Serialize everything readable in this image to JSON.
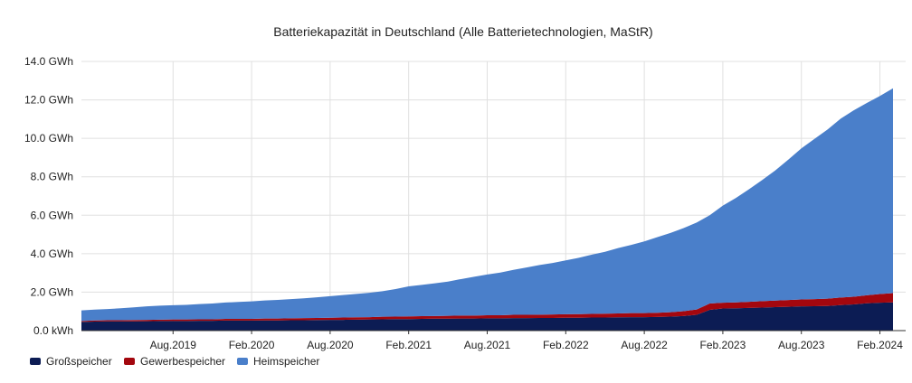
{
  "chart_data": {
    "type": "area",
    "stacked": true,
    "title": "Batteriekapazität in Deutschland (Alle Batterietechnologien, MaStR)",
    "xlabel": "",
    "ylabel": "",
    "ylim": [
      0,
      14
    ],
    "y_ticks": [
      "0.0 kWh",
      "2.0 GWh",
      "4.0 GWh",
      "6.0 GWh",
      "8.0 GWh",
      "10.0 GWh",
      "12.0 GWh",
      "14.0 GWh"
    ],
    "y_tick_values": [
      0,
      2,
      4,
      6,
      8,
      10,
      12,
      14
    ],
    "x_tick_labels": [
      "Aug.2019",
      "Feb.2020",
      "Aug.2020",
      "Feb.2021",
      "Aug.2021",
      "Feb.2022",
      "Aug.2022",
      "Feb.2023",
      "Aug.2023",
      "Feb.2024"
    ],
    "x_tick_months": [
      "2019-08",
      "2020-02",
      "2020-08",
      "2021-02",
      "2021-08",
      "2022-02",
      "2022-08",
      "2023-02",
      "2023-08",
      "2024-02"
    ],
    "grid": true,
    "legend_position": "bottom-left",
    "x": [
      "2019-01",
      "2019-02",
      "2019-03",
      "2019-04",
      "2019-05",
      "2019-06",
      "2019-07",
      "2019-08",
      "2019-09",
      "2019-10",
      "2019-11",
      "2019-12",
      "2020-01",
      "2020-02",
      "2020-03",
      "2020-04",
      "2020-05",
      "2020-06",
      "2020-07",
      "2020-08",
      "2020-09",
      "2020-10",
      "2020-11",
      "2020-12",
      "2021-01",
      "2021-02",
      "2021-03",
      "2021-04",
      "2021-05",
      "2021-06",
      "2021-07",
      "2021-08",
      "2021-09",
      "2021-10",
      "2021-11",
      "2021-12",
      "2022-01",
      "2022-02",
      "2022-03",
      "2022-04",
      "2022-05",
      "2022-06",
      "2022-07",
      "2022-08",
      "2022-09",
      "2022-10",
      "2022-11",
      "2022-12",
      "2023-01",
      "2023-02",
      "2023-03",
      "2023-04",
      "2023-05",
      "2023-06",
      "2023-07",
      "2023-08",
      "2023-09",
      "2023-10",
      "2023-11",
      "2023-12",
      "2024-01",
      "2024-02",
      "2024-03"
    ],
    "series": [
      {
        "name": "Großspeicher",
        "color": "#0c1c54",
        "values": [
          0.45,
          0.47,
          0.48,
          0.48,
          0.48,
          0.49,
          0.5,
          0.5,
          0.5,
          0.51,
          0.51,
          0.52,
          0.52,
          0.52,
          0.53,
          0.53,
          0.54,
          0.54,
          0.55,
          0.56,
          0.56,
          0.57,
          0.58,
          0.59,
          0.6,
          0.6,
          0.61,
          0.62,
          0.62,
          0.63,
          0.63,
          0.64,
          0.64,
          0.65,
          0.65,
          0.66,
          0.66,
          0.67,
          0.67,
          0.68,
          0.68,
          0.69,
          0.7,
          0.7,
          0.71,
          0.73,
          0.76,
          0.82,
          1.08,
          1.15,
          1.16,
          1.18,
          1.2,
          1.22,
          1.24,
          1.26,
          1.27,
          1.28,
          1.33,
          1.36,
          1.42,
          1.45,
          1.47
        ]
      },
      {
        "name": "Gewerbespeicher",
        "color": "#a3070e",
        "values": [
          0.05,
          0.06,
          0.06,
          0.06,
          0.07,
          0.07,
          0.07,
          0.08,
          0.08,
          0.08,
          0.08,
          0.09,
          0.09,
          0.09,
          0.1,
          0.1,
          0.1,
          0.11,
          0.11,
          0.11,
          0.12,
          0.12,
          0.12,
          0.13,
          0.13,
          0.14,
          0.14,
          0.14,
          0.15,
          0.15,
          0.15,
          0.16,
          0.16,
          0.17,
          0.17,
          0.17,
          0.18,
          0.18,
          0.19,
          0.19,
          0.2,
          0.2,
          0.21,
          0.21,
          0.22,
          0.23,
          0.25,
          0.28,
          0.33,
          0.3,
          0.31,
          0.32,
          0.33,
          0.34,
          0.35,
          0.36,
          0.37,
          0.38,
          0.39,
          0.4,
          0.42,
          0.45,
          0.48
        ]
      },
      {
        "name": "Heimspeicher",
        "color": "#4a7fca",
        "values": [
          0.55,
          0.56,
          0.58,
          0.62,
          0.66,
          0.7,
          0.73,
          0.74,
          0.76,
          0.79,
          0.82,
          0.85,
          0.88,
          0.91,
          0.94,
          0.97,
          1.0,
          1.03,
          1.07,
          1.12,
          1.17,
          1.22,
          1.27,
          1.33,
          1.43,
          1.56,
          1.63,
          1.7,
          1.78,
          1.9,
          2.02,
          2.12,
          2.22,
          2.34,
          2.46,
          2.58,
          2.68,
          2.8,
          2.93,
          3.08,
          3.22,
          3.4,
          3.55,
          3.73,
          3.93,
          4.12,
          4.32,
          4.52,
          4.59,
          5.05,
          5.43,
          5.85,
          6.3,
          6.77,
          7.3,
          7.86,
          8.33,
          8.8,
          9.3,
          9.7,
          10.0,
          10.3,
          10.65
        ]
      }
    ]
  }
}
